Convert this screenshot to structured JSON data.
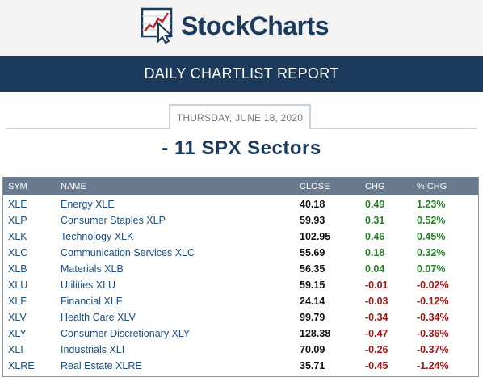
{
  "header": {
    "logo_text": "StockCharts"
  },
  "banner": {
    "title": "DAILY CHARTLIST REPORT"
  },
  "report": {
    "date": "THURSDAY, JUNE 18, 2020",
    "list_title": "- 11 SPX Sectors"
  },
  "table": {
    "columns": [
      "SYM",
      "NAME",
      "CLOSE",
      "CHG",
      "% CHG"
    ],
    "rows": [
      {
        "sym": "XLE",
        "name": "Energy XLE",
        "close": "40.18",
        "chg": "0.49",
        "pct": "1.23%",
        "dir": "pos"
      },
      {
        "sym": "XLP",
        "name": "Consumer Staples XLP",
        "close": "59.93",
        "chg": "0.31",
        "pct": "0.52%",
        "dir": "pos"
      },
      {
        "sym": "XLK",
        "name": "Technology XLK",
        "close": "102.95",
        "chg": "0.46",
        "pct": "0.45%",
        "dir": "pos"
      },
      {
        "sym": "XLC",
        "name": "Communication Services XLC",
        "close": "55.69",
        "chg": "0.18",
        "pct": "0.32%",
        "dir": "pos"
      },
      {
        "sym": "XLB",
        "name": "Materials XLB",
        "close": "56.35",
        "chg": "0.04",
        "pct": "0.07%",
        "dir": "pos"
      },
      {
        "sym": "XLU",
        "name": "Utilities XLU",
        "close": "59.15",
        "chg": "-0.01",
        "pct": "-0.02%",
        "dir": "neg"
      },
      {
        "sym": "XLF",
        "name": "Financial XLF",
        "close": "24.14",
        "chg": "-0.03",
        "pct": "-0.12%",
        "dir": "neg"
      },
      {
        "sym": "XLV",
        "name": "Health Care XLV",
        "close": "99.79",
        "chg": "-0.34",
        "pct": "-0.34%",
        "dir": "neg"
      },
      {
        "sym": "XLY",
        "name": "Consumer Discretionary XLY",
        "close": "128.38",
        "chg": "-0.47",
        "pct": "-0.36%",
        "dir": "neg"
      },
      {
        "sym": "XLI",
        "name": "Industrials XLI",
        "close": "70.09",
        "chg": "-0.26",
        "pct": "-0.37%",
        "dir": "neg"
      },
      {
        "sym": "XLRE",
        "name": "Real Estate XLRE",
        "close": "35.71",
        "chg": "-0.45",
        "pct": "-1.24%",
        "dir": "neg"
      }
    ]
  },
  "colors": {
    "brand_navy": "#1b3a5c",
    "header_gray": "#6a7b8f",
    "positive": "#2a7d2a",
    "negative": "#a01818",
    "link": "#1b4f82"
  }
}
